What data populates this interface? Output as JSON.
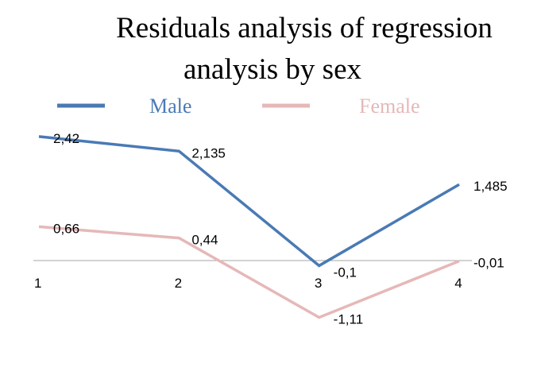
{
  "chart_data": {
    "type": "line",
    "title_lines": [
      "Residuals analysis of regression",
      "analysis by sex"
    ],
    "categories": [
      "1",
      "2",
      "3",
      "4"
    ],
    "series": [
      {
        "name": "Male",
        "color": "#4a7ab5",
        "values": [
          2.42,
          2.135,
          -0.1,
          1.485
        ],
        "labels": [
          "2,42",
          "2,135",
          "-0,1",
          "1,485"
        ]
      },
      {
        "name": "Female",
        "color": "#e6b8b8",
        "values": [
          0.66,
          0.44,
          -1.11,
          -0.01
        ],
        "labels": [
          "0,66",
          "0,44",
          "-1,11",
          "-0,01"
        ]
      }
    ],
    "xlabel": "",
    "ylabel": "",
    "ylim": [
      -1.5,
      3
    ],
    "grid": false,
    "legend_position": "top"
  }
}
